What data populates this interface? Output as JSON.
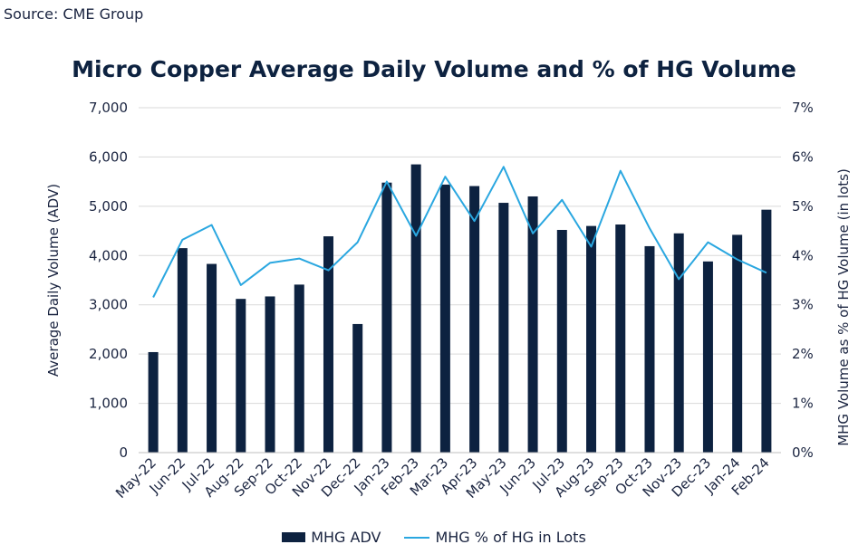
{
  "source": "Source: CME Group",
  "chart_data": {
    "type": "bar",
    "title": "Micro Copper Average Daily Volume and % of HG Volume",
    "categories": [
      "May-22",
      "Jun-22",
      "Jul-22",
      "Aug-22",
      "Sep-22",
      "Oct-22",
      "Nov-22",
      "Dec-22",
      "Jan-23",
      "Feb-23",
      "Mar-23",
      "Apr-23",
      "May-23",
      "Jun-23",
      "Jul-23",
      "Aug-23",
      "Sep-23",
      "Oct-23",
      "Nov-23",
      "Dec-23",
      "Jan-24",
      "Feb-24"
    ],
    "series": [
      {
        "name": "MHG ADV",
        "type": "bar",
        "axis": "left",
        "color": "#0d2240",
        "values": [
          2040,
          4150,
          3830,
          3120,
          3170,
          3410,
          4390,
          2610,
          5480,
          5850,
          5440,
          5410,
          5070,
          5200,
          4520,
          4600,
          4630,
          4190,
          4450,
          3880,
          4420,
          4930
        ]
      },
      {
        "name": "MHG % of HG in Lots",
        "type": "line",
        "axis": "right",
        "color": "#2aa7e0",
        "values": [
          3.15,
          4.32,
          4.62,
          3.4,
          3.85,
          3.94,
          3.7,
          4.27,
          5.5,
          4.4,
          5.6,
          4.7,
          5.8,
          4.45,
          5.13,
          4.18,
          5.72,
          4.55,
          3.52,
          4.27,
          3.92,
          3.65
        ]
      }
    ],
    "y_left": {
      "label": "Average Daily Volume (ADV)",
      "min": 0,
      "max": 7000,
      "ticks": [
        "0",
        "1,000",
        "2,000",
        "3,000",
        "4,000",
        "5,000",
        "6,000",
        "7,000"
      ]
    },
    "y_right": {
      "label": "MHG Volume as % of HG Volume (in lots)",
      "min": 0,
      "max": 7,
      "ticks": [
        "0%",
        "1%",
        "2%",
        "3%",
        "4%",
        "5%",
        "6%",
        "7%"
      ]
    },
    "grid": true,
    "legend_position": "bottom"
  }
}
